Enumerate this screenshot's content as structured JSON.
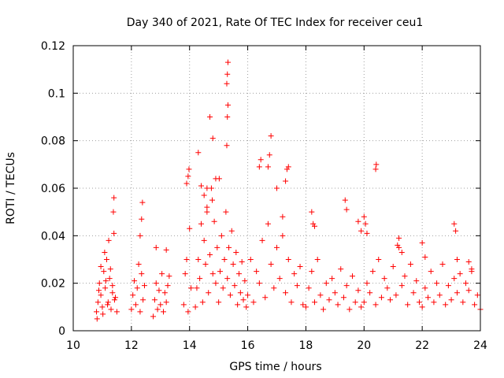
{
  "chart_data": {
    "type": "scatter",
    "title": "Day 340 of 2021, Rate Of TEC Index for receiver ceu1",
    "xlabel": "GPS time / hours",
    "ylabel": "ROTI / TECUs",
    "xlim": [
      10,
      24
    ],
    "ylim": [
      0,
      0.12
    ],
    "xticks": [
      "10",
      "12",
      "14",
      "16",
      "18",
      "20",
      "22",
      "24"
    ],
    "yticks": [
      "0",
      "0.02",
      "0.04",
      "0.06",
      "0.08",
      "0.1",
      "0.12"
    ],
    "grid": true,
    "marker": "+",
    "marker_color": "#ff0000",
    "series": [
      {
        "x": [
          10.8,
          10.85,
          10.9,
          10.95,
          11.0,
          11.05,
          11.1,
          11.15,
          11.2,
          11.25,
          11.3,
          11.35,
          11.4,
          11.45,
          11.5,
          10.82,
          10.88,
          10.95,
          11.02,
          11.08,
          11.12,
          11.18,
          11.22,
          11.28,
          11.35,
          11.42,
          11.38,
          11.4,
          12.0,
          12.05,
          12.1,
          12.15,
          12.2,
          12.25,
          12.3,
          12.35,
          12.4,
          12.45,
          12.3,
          12.35,
          12.38,
          12.75,
          12.8,
          12.85,
          12.9,
          12.95,
          13.0,
          13.05,
          13.1,
          13.15,
          13.2,
          13.25,
          13.3,
          12.85,
          13.2,
          13.8,
          13.85,
          13.9,
          13.95,
          14.0,
          14.05,
          13.9,
          13.95,
          13.98,
          14.2,
          14.25,
          14.3,
          14.35,
          14.4,
          14.45,
          14.5,
          14.55,
          14.6,
          14.65,
          14.7,
          14.75,
          14.8,
          14.85,
          14.9,
          14.95,
          14.3,
          14.4,
          14.5,
          14.6,
          14.7,
          14.8,
          14.9,
          15.0,
          15.05,
          15.1,
          15.15,
          15.2,
          15.25,
          15.3,
          15.35,
          15.4,
          15.45,
          15.5,
          15.55,
          15.6,
          15.65,
          15.7,
          15.75,
          15.8,
          15.85,
          15.9,
          15.95,
          14.6,
          14.78,
          15.02,
          15.28,
          15.3,
          15.32,
          15.28,
          15.3,
          15.32,
          16.0,
          16.1,
          16.2,
          16.3,
          16.4,
          16.5,
          16.6,
          16.7,
          16.8,
          16.9,
          17.0,
          17.1,
          17.2,
          17.3,
          17.4,
          17.5,
          17.6,
          17.7,
          17.8,
          17.9,
          16.4,
          16.45,
          16.7,
          16.75,
          16.8,
          17.0,
          17.2,
          17.3,
          17.35,
          17.4,
          18.0,
          18.1,
          18.2,
          18.3,
          18.4,
          18.5,
          18.6,
          18.7,
          18.8,
          18.9,
          19.0,
          19.1,
          19.2,
          19.3,
          19.4,
          19.5,
          19.6,
          19.7,
          19.8,
          19.9,
          18.2,
          18.25,
          18.3,
          19.35,
          19.4,
          19.8,
          19.9,
          20.0,
          20.1,
          20.2,
          20.3,
          20.4,
          20.5,
          20.6,
          20.7,
          20.8,
          20.9,
          21.0,
          21.1,
          21.2,
          21.3,
          21.4,
          21.5,
          21.6,
          21.7,
          21.8,
          21.9,
          20.0,
          20.05,
          20.1,
          20.4,
          20.42,
          21.15,
          21.2,
          21.3,
          22.0,
          22.1,
          22.2,
          22.3,
          22.4,
          22.5,
          22.6,
          22.7,
          22.8,
          22.9,
          23.0,
          23.1,
          23.2,
          23.3,
          23.4,
          23.5,
          23.6,
          23.7,
          23.8,
          23.9,
          24.0,
          22.0,
          22.1,
          23.1,
          23.15,
          23.2,
          23.6,
          23.7
        ],
        "y": [
          0.008,
          0.012,
          0.02,
          0.015,
          0.01,
          0.025,
          0.018,
          0.03,
          0.012,
          0.022,
          0.009,
          0.016,
          0.041,
          0.014,
          0.008,
          0.005,
          0.017,
          0.027,
          0.007,
          0.033,
          0.021,
          0.011,
          0.038,
          0.026,
          0.019,
          0.013,
          0.05,
          0.056,
          0.009,
          0.015,
          0.021,
          0.011,
          0.018,
          0.028,
          0.008,
          0.024,
          0.013,
          0.019,
          0.04,
          0.047,
          0.054,
          0.006,
          0.013,
          0.02,
          0.009,
          0.017,
          0.011,
          0.024,
          0.008,
          0.016,
          0.012,
          0.019,
          0.023,
          0.035,
          0.034,
          0.011,
          0.024,
          0.03,
          0.008,
          0.043,
          0.018,
          0.062,
          0.065,
          0.068,
          0.01,
          0.018,
          0.03,
          0.022,
          0.045,
          0.012,
          0.038,
          0.028,
          0.05,
          0.016,
          0.032,
          0.06,
          0.024,
          0.046,
          0.02,
          0.035,
          0.075,
          0.061,
          0.057,
          0.052,
          0.09,
          0.081,
          0.064,
          0.012,
          0.025,
          0.04,
          0.018,
          0.03,
          0.05,
          0.022,
          0.035,
          0.015,
          0.042,
          0.028,
          0.019,
          0.033,
          0.011,
          0.024,
          0.016,
          0.029,
          0.013,
          0.021,
          0.01,
          0.06,
          0.055,
          0.064,
          0.078,
          0.09,
          0.095,
          0.104,
          0.108,
          0.113,
          0.015,
          0.03,
          0.012,
          0.025,
          0.02,
          0.038,
          0.014,
          0.045,
          0.028,
          0.018,
          0.035,
          0.022,
          0.04,
          0.016,
          0.03,
          0.012,
          0.024,
          0.019,
          0.027,
          0.011,
          0.069,
          0.072,
          0.069,
          0.074,
          0.082,
          0.06,
          0.048,
          0.063,
          0.068,
          0.069,
          0.01,
          0.018,
          0.025,
          0.012,
          0.03,
          0.015,
          0.009,
          0.02,
          0.013,
          0.022,
          0.016,
          0.011,
          0.026,
          0.014,
          0.019,
          0.009,
          0.023,
          0.012,
          0.017,
          0.01,
          0.05,
          0.045,
          0.044,
          0.055,
          0.051,
          0.046,
          0.042,
          0.012,
          0.02,
          0.016,
          0.025,
          0.011,
          0.03,
          0.014,
          0.022,
          0.018,
          0.013,
          0.027,
          0.015,
          0.035,
          0.019,
          0.023,
          0.011,
          0.028,
          0.016,
          0.021,
          0.012,
          0.048,
          0.045,
          0.041,
          0.068,
          0.07,
          0.036,
          0.039,
          0.033,
          0.01,
          0.018,
          0.014,
          0.025,
          0.012,
          0.02,
          0.015,
          0.028,
          0.011,
          0.019,
          0.013,
          0.022,
          0.016,
          0.024,
          0.012,
          0.02,
          0.017,
          0.026,
          0.011,
          0.015,
          0.009,
          0.037,
          0.031,
          0.045,
          0.042,
          0.03,
          0.029,
          0.025
        ]
      }
    ]
  }
}
